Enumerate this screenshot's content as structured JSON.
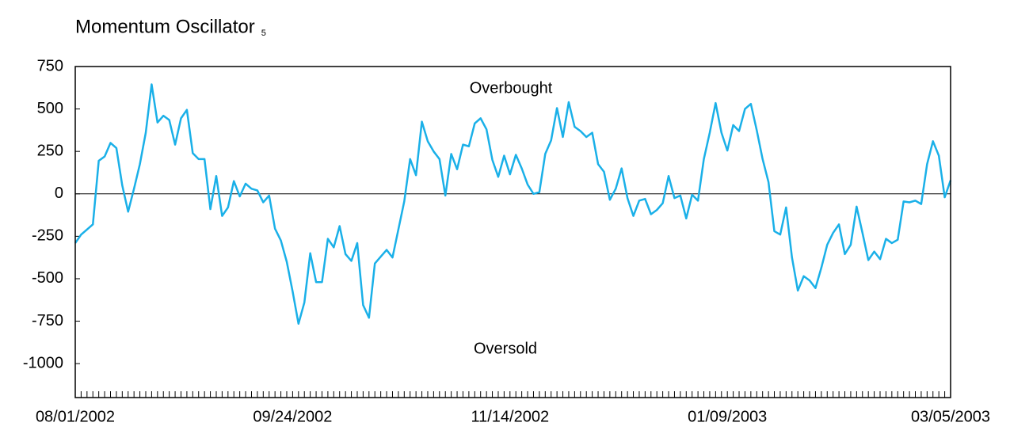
{
  "chart_data": {
    "type": "line",
    "title": "Momentum  Oscillator",
    "title_subscript": "5",
    "annotations": [
      "Overbought",
      "Oversold"
    ],
    "categories": [
      "08/01/2002",
      null,
      null,
      null,
      null,
      null,
      null,
      null,
      null,
      null,
      null,
      null,
      null,
      null,
      null,
      null,
      null,
      null,
      null,
      null,
      null,
      null,
      null,
      null,
      null,
      null,
      null,
      null,
      null,
      null,
      null,
      null,
      null,
      null,
      null,
      null,
      null,
      "09/24/2002",
      null,
      null,
      null,
      null,
      null,
      null,
      null,
      null,
      null,
      null,
      null,
      null,
      null,
      null,
      null,
      null,
      null,
      null,
      null,
      null,
      null,
      null,
      null,
      null,
      null,
      null,
      null,
      null,
      null,
      null,
      null,
      null,
      null,
      null,
      null,
      null,
      "11/14/2002",
      null,
      null,
      null,
      null,
      null,
      null,
      null,
      null,
      null,
      null,
      null,
      null,
      null,
      null,
      null,
      null,
      null,
      null,
      null,
      null,
      null,
      null,
      null,
      null,
      null,
      null,
      null,
      null,
      null,
      null,
      null,
      null,
      null,
      null,
      null,
      null,
      "01/09/2003",
      null,
      null,
      null,
      null,
      null,
      null,
      null,
      null,
      null,
      null,
      null,
      null,
      null,
      null,
      null,
      null,
      null,
      null,
      null,
      null,
      null,
      null,
      null,
      null,
      null,
      null,
      null,
      null,
      null,
      null,
      null,
      null,
      null,
      null,
      null,
      null,
      null,
      "03/05/2003"
    ],
    "series": [
      {
        "name": "Momentum",
        "color": "#1ab0e8",
        "values": [
          -290,
          -240,
          -210,
          -180,
          195,
          220,
          300,
          270,
          50,
          -105,
          30,
          175,
          360,
          645,
          420,
          460,
          435,
          290,
          445,
          495,
          240,
          205,
          205,
          -90,
          105,
          -130,
          -80,
          75,
          -15,
          60,
          30,
          20,
          -50,
          -10,
          -205,
          -275,
          -400,
          -575,
          -765,
          -640,
          -350,
          -520,
          -520,
          -265,
          -315,
          -190,
          -355,
          -395,
          -290,
          -655,
          -730,
          -410,
          -370,
          -330,
          -375,
          -210,
          -45,
          205,
          110,
          425,
          310,
          250,
          205,
          -10,
          235,
          145,
          290,
          280,
          415,
          445,
          380,
          200,
          100,
          225,
          115,
          230,
          150,
          55,
          0,
          10,
          235,
          315,
          505,
          335,
          540,
          395,
          370,
          335,
          360,
          175,
          130,
          -35,
          30,
          150,
          -25,
          -130,
          -40,
          -30,
          -120,
          -95,
          -55,
          105,
          -25,
          -10,
          -145,
          -5,
          -40,
          205,
          360,
          535,
          360,
          255,
          405,
          370,
          500,
          530,
          375,
          205,
          70,
          -220,
          -240,
          -80,
          -375,
          -570,
          -485,
          -510,
          -555,
          -435,
          -300,
          -230,
          -180,
          -355,
          -300,
          -75,
          -230,
          -390,
          -340,
          -385,
          -265,
          -290,
          -270,
          -45,
          -50,
          -40,
          -60,
          175,
          310,
          225,
          -20,
          80
        ]
      }
    ],
    "ylim": [
      -1200,
      750
    ],
    "yticks": [
      750,
      500,
      250,
      0,
      -250,
      -500,
      -750,
      -1000
    ],
    "zero_line": true
  }
}
